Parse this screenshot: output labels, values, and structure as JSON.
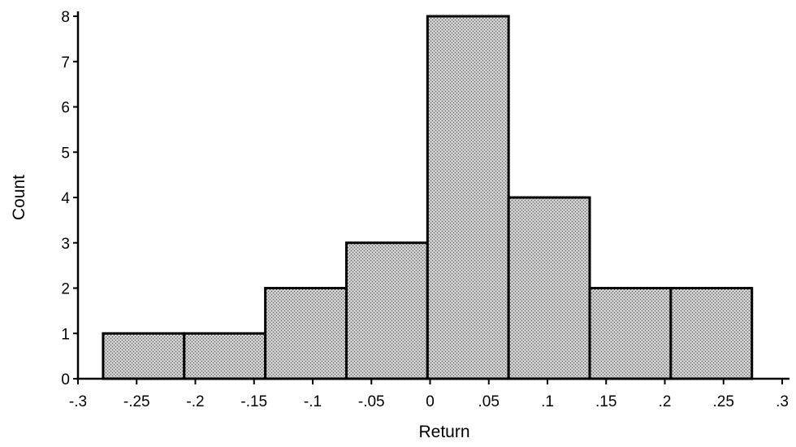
{
  "chart_data": {
    "type": "bar",
    "title": "",
    "xlabel": "Return",
    "ylabel": "Count",
    "xlim": [
      -0.3,
      0.3
    ],
    "ylim": [
      0,
      8
    ],
    "grid": false,
    "x_ticks": [
      {
        "value": -0.3,
        "label": "-.3"
      },
      {
        "value": -0.25,
        "label": "-.25"
      },
      {
        "value": -0.2,
        "label": "-.2"
      },
      {
        "value": -0.15,
        "label": "-.15"
      },
      {
        "value": -0.1,
        "label": "-.1"
      },
      {
        "value": -0.05,
        "label": "-.05"
      },
      {
        "value": 0,
        "label": "0"
      },
      {
        "value": 0.05,
        "label": ".05"
      },
      {
        "value": 0.1,
        "label": ".1"
      },
      {
        "value": 0.15,
        "label": ".15"
      },
      {
        "value": 0.2,
        "label": ".2"
      },
      {
        "value": 0.25,
        "label": ".25"
      },
      {
        "value": 0.3,
        "label": ".3"
      }
    ],
    "y_ticks": [
      {
        "value": 0,
        "label": "0"
      },
      {
        "value": 1,
        "label": "1"
      },
      {
        "value": 2,
        "label": "2"
      },
      {
        "value": 3,
        "label": "3"
      },
      {
        "value": 4,
        "label": "4"
      },
      {
        "value": 5,
        "label": "5"
      },
      {
        "value": 6,
        "label": "6"
      },
      {
        "value": 7,
        "label": "7"
      },
      {
        "value": 8,
        "label": "8"
      }
    ],
    "bins": [
      {
        "start": -0.2786,
        "end": -0.2095,
        "count": 1
      },
      {
        "start": -0.2095,
        "end": -0.1404,
        "count": 1
      },
      {
        "start": -0.1404,
        "end": -0.0713,
        "count": 2
      },
      {
        "start": -0.0713,
        "end": -0.0022,
        "count": 3
      },
      {
        "start": -0.0022,
        "end": 0.0669,
        "count": 8
      },
      {
        "start": 0.0669,
        "end": 0.136,
        "count": 4
      },
      {
        "start": 0.136,
        "end": 0.2051,
        "count": 2
      },
      {
        "start": 0.2051,
        "end": 0.2742,
        "count": 2
      }
    ],
    "bar_fill": "#b4b4b4"
  }
}
